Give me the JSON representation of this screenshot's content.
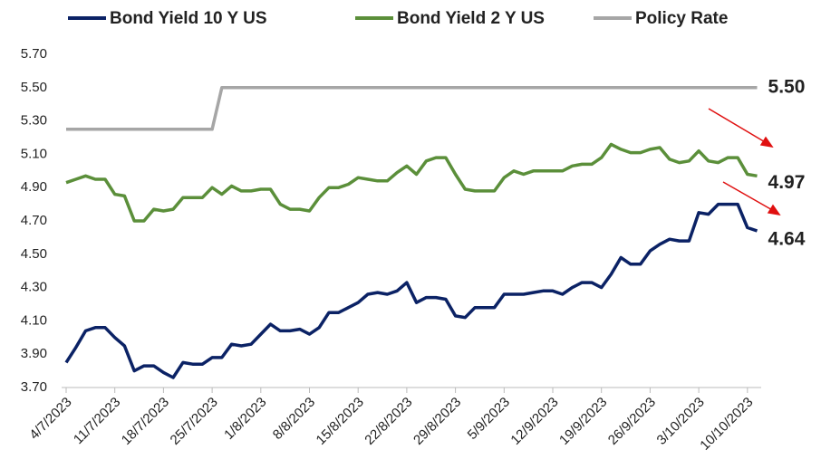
{
  "chart_data": {
    "type": "line",
    "categories": [
      "4/7/2023",
      null,
      null,
      null,
      null,
      "11/7/2023",
      null,
      null,
      null,
      null,
      "18/7/2023",
      null,
      null,
      null,
      null,
      "25/7/2023",
      null,
      null,
      null,
      null,
      "1/8/2023",
      null,
      null,
      null,
      null,
      "8/8/2023",
      null,
      null,
      null,
      null,
      "15/8/2023",
      null,
      null,
      null,
      null,
      "22/8/2023",
      null,
      null,
      null,
      null,
      "29/8/2023",
      null,
      null,
      null,
      null,
      "5/9/2023",
      null,
      null,
      null,
      null,
      "12/9/2023",
      null,
      null,
      null,
      null,
      "19/9/2023",
      null,
      null,
      null,
      null,
      "26/9/2023",
      null,
      null,
      null,
      null,
      "3/10/2023",
      null,
      null,
      null,
      null,
      "10/10/2023",
      null
    ],
    "series": [
      {
        "name": "Bond Yield 10 Y US",
        "color": "#0b2265",
        "end_label": "4.64",
        "values": [
          3.85,
          3.94,
          4.04,
          4.06,
          4.06,
          4.0,
          3.95,
          3.8,
          3.83,
          3.83,
          3.79,
          3.76,
          3.85,
          3.84,
          3.84,
          3.88,
          3.88,
          3.96,
          3.95,
          3.96,
          4.02,
          4.08,
          4.04,
          4.04,
          4.05,
          4.02,
          4.06,
          4.15,
          4.15,
          4.18,
          4.21,
          4.26,
          4.27,
          4.26,
          4.28,
          4.33,
          4.21,
          4.24,
          4.24,
          4.23,
          4.13,
          4.12,
          4.18,
          4.18,
          4.18,
          4.26,
          4.26,
          4.26,
          4.27,
          4.28,
          4.28,
          4.26,
          4.3,
          4.33,
          4.33,
          4.3,
          4.38,
          4.48,
          4.44,
          4.44,
          4.52,
          4.56,
          4.59,
          4.58,
          4.58,
          4.75,
          4.74,
          4.8,
          4.8,
          4.8,
          4.66,
          4.64
        ]
      },
      {
        "name": "Bond Yield 2 Y US",
        "color": "#5b8f3a",
        "end_label": "4.97",
        "values": [
          4.93,
          4.95,
          4.97,
          4.95,
          4.95,
          4.86,
          4.85,
          4.7,
          4.7,
          4.77,
          4.76,
          4.77,
          4.84,
          4.84,
          4.84,
          4.9,
          4.86,
          4.91,
          4.88,
          4.88,
          4.89,
          4.89,
          4.8,
          4.77,
          4.77,
          4.76,
          4.84,
          4.9,
          4.9,
          4.92,
          4.96,
          4.95,
          4.94,
          4.94,
          4.99,
          5.03,
          4.98,
          5.06,
          5.08,
          5.08,
          4.98,
          4.89,
          4.88,
          4.88,
          4.88,
          4.96,
          5.0,
          4.98,
          5.0,
          5.0,
          5.0,
          5.0,
          5.03,
          5.04,
          5.04,
          5.08,
          5.16,
          5.13,
          5.11,
          5.11,
          5.13,
          5.14,
          5.07,
          5.05,
          5.06,
          5.12,
          5.06,
          5.05,
          5.08,
          5.08,
          4.98,
          4.97
        ]
      },
      {
        "name": "Policy Rate",
        "color": "#a6a6a6",
        "end_label": "5.50",
        "values": [
          5.25,
          5.25,
          5.25,
          5.25,
          5.25,
          5.25,
          5.25,
          5.25,
          5.25,
          5.25,
          5.25,
          5.25,
          5.25,
          5.25,
          5.25,
          5.25,
          5.5,
          5.5,
          5.5,
          5.5,
          5.5,
          5.5,
          5.5,
          5.5,
          5.5,
          5.5,
          5.5,
          5.5,
          5.5,
          5.5,
          5.5,
          5.5,
          5.5,
          5.5,
          5.5,
          5.5,
          5.5,
          5.5,
          5.5,
          5.5,
          5.5,
          5.5,
          5.5,
          5.5,
          5.5,
          5.5,
          5.5,
          5.5,
          5.5,
          5.5,
          5.5,
          5.5,
          5.5,
          5.5,
          5.5,
          5.5,
          5.5,
          5.5,
          5.5,
          5.5,
          5.5,
          5.5,
          5.5,
          5.5,
          5.5,
          5.5,
          5.5,
          5.5,
          5.5,
          5.5,
          5.5,
          5.5
        ]
      }
    ],
    "ylim": [
      3.7,
      5.7
    ],
    "yticks": [
      {
        "value": 3.7,
        "label": "3.70"
      },
      {
        "value": 3.9,
        "label": "3.90"
      },
      {
        "value": 4.1,
        "label": "4.10"
      },
      {
        "value": 4.3,
        "label": "4.30"
      },
      {
        "value": 4.5,
        "label": "4.50"
      },
      {
        "value": 4.7,
        "label": "4.70"
      },
      {
        "value": 4.9,
        "label": "4.90"
      },
      {
        "value": 5.1,
        "label": "5.10"
      },
      {
        "value": 5.3,
        "label": "5.30"
      },
      {
        "value": 5.5,
        "label": "5.50"
      },
      {
        "value": 5.7,
        "label": "5.70"
      }
    ],
    "grid": false,
    "legend": "top"
  }
}
